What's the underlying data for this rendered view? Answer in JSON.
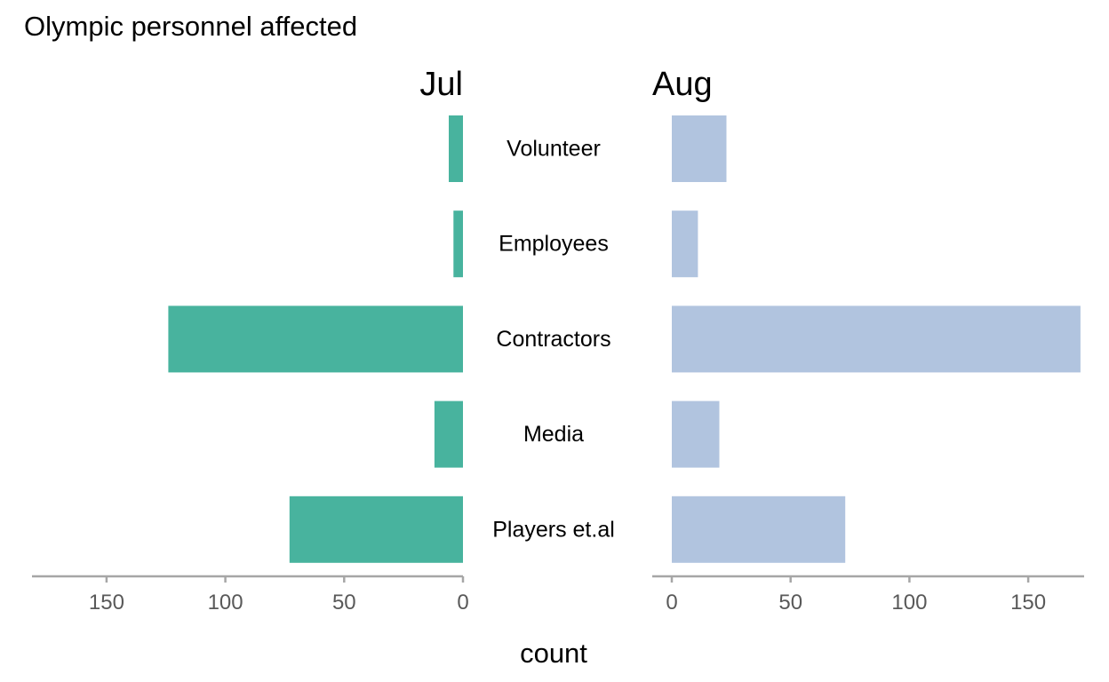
{
  "chart_data": {
    "type": "bar",
    "orientation": "horizontal",
    "layout": "back-to-back",
    "title": "Olympic personnel affected",
    "xlabel": "count",
    "ylabel": "",
    "categories": [
      "Volunteer",
      "Employees",
      "Contractors",
      "Media",
      "Players et.al"
    ],
    "series": [
      {
        "name": "Jul",
        "direction": "left",
        "color": "#48b39e",
        "values": [
          6,
          4,
          124,
          12,
          73
        ],
        "xlim": [
          0,
          180
        ],
        "ticks": [
          150,
          100,
          50,
          0
        ]
      },
      {
        "name": "Aug",
        "direction": "right",
        "color": "#b1c4df",
        "values": [
          23,
          11,
          172,
          20,
          73
        ],
        "xlim": [
          0,
          180
        ],
        "ticks": [
          0,
          50,
          100,
          150
        ]
      }
    ],
    "grid": false,
    "legend": "none",
    "axis_color": "#a6a6a6",
    "tick_label_color": "#595959"
  }
}
